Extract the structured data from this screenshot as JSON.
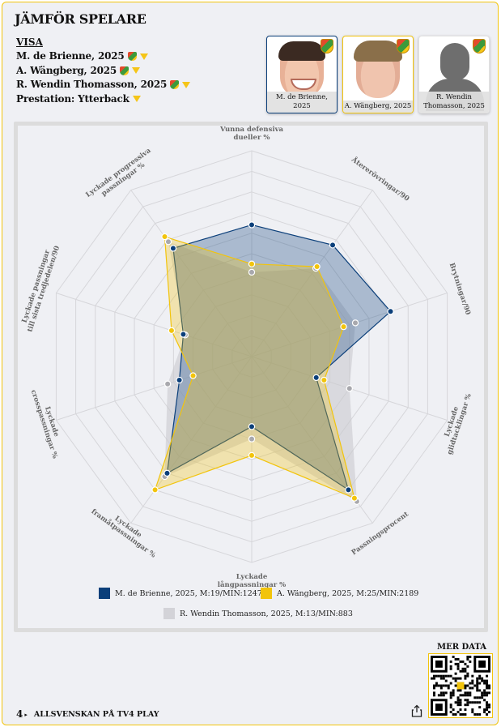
{
  "header": {
    "title": "JÄMFÖR SPELARE",
    "visa_label": "VISA"
  },
  "selectors": [
    {
      "label": "M. de Brienne, 2025",
      "has_crest": true,
      "icon": "caret-down-icon"
    },
    {
      "label": "A. Wängberg, 2025",
      "has_crest": true,
      "icon": "caret-down-icon"
    },
    {
      "label": "R. Wendin Thomasson, 2025",
      "has_crest": true,
      "icon": "caret-down-icon"
    },
    {
      "label": "Prestation: Ytterback",
      "has_crest": false,
      "icon": "caret-down-icon"
    }
  ],
  "player_cards": [
    {
      "label": "M. de Brienne, 2025",
      "border_color": "#0b3f7a",
      "photo": "player-photo"
    },
    {
      "label": "A. Wängberg, 2025",
      "border_color": "#f2c40c",
      "photo": "player-photo"
    },
    {
      "label": "R. Wendin Thomasson, 2025",
      "border_color": "#e2e2e2",
      "photo": "silhouette-placeholder"
    }
  ],
  "chart_data": {
    "type": "radar",
    "title": "",
    "range": [
      0,
      1
    ],
    "rings": 10,
    "axes": [
      "Vunna defensiva dueller %",
      "Återerövringar/90",
      "Brytningar/90",
      "Lyckade glidtacklingar %",
      "Passningsprocent",
      "Lyckade långpassningar %",
      "Lyckade framåtpassningar %",
      "Lyckade crosspassningar %",
      "Lyckade passningar till sista tredjedelen/90",
      "Lyckade progressiva passningar %"
    ],
    "axis_label_lines": [
      [
        "Vunna defensiva",
        "dueller %"
      ],
      [
        "Återerövringar/90"
      ],
      [
        "Brytningar/90"
      ],
      [
        "Lyckade",
        "glidtacklingar %"
      ],
      [
        "Passningsprocent"
      ],
      [
        "Lyckade",
        "långpassningar %"
      ],
      [
        "Lyckade",
        "framåtpassningar %"
      ],
      [
        "Lyckade",
        "crosspassningar %"
      ],
      [
        "Lyckade passningar",
        "till sista tredjedelen/90"
      ],
      [
        "Lyckade progressiva",
        "passningar %"
      ]
    ],
    "series": [
      {
        "name": "R. Wendin Thomasson, 2025, M:13/MIN:883",
        "color": "#c9c9cf",
        "values": [
          0.41,
          0.53,
          0.53,
          0.5,
          0.87,
          0.4,
          0.72,
          0.43,
          0.34,
          0.69
        ]
      },
      {
        "name": "M. de Brienne, 2025, M:19/MIN:1247",
        "color": "#0b3f7a",
        "values": [
          0.64,
          0.67,
          0.71,
          0.33,
          0.8,
          0.34,
          0.7,
          0.37,
          0.35,
          0.65
        ]
      },
      {
        "name": "A. Wängberg, 2025, M:25/MIN:2189",
        "color": "#f2c40c",
        "values": [
          0.45,
          0.54,
          0.47,
          0.37,
          0.85,
          0.48,
          0.8,
          0.3,
          0.41,
          0.72
        ]
      }
    ],
    "legend": [
      {
        "name": "M. de Brienne, 2025, M:19/MIN:1247",
        "color": "#0b3f7a"
      },
      {
        "name": "A. Wängberg, 2025, M:25/MIN:2189",
        "color": "#f2c40c"
      },
      {
        "name": "R. Wendin Thomasson, 2025, M:13/MIN:883",
        "color": "#d3d3d8"
      }
    ],
    "legend_position": "bottom",
    "grid": true
  },
  "footer": {
    "mer_data": "MER DATA",
    "brand_mark": "4",
    "brand_text": "ALLSVENSKAN PÅ TV4 PLAY",
    "share_icon": "share-icon",
    "qr_icon": "qr-code"
  }
}
